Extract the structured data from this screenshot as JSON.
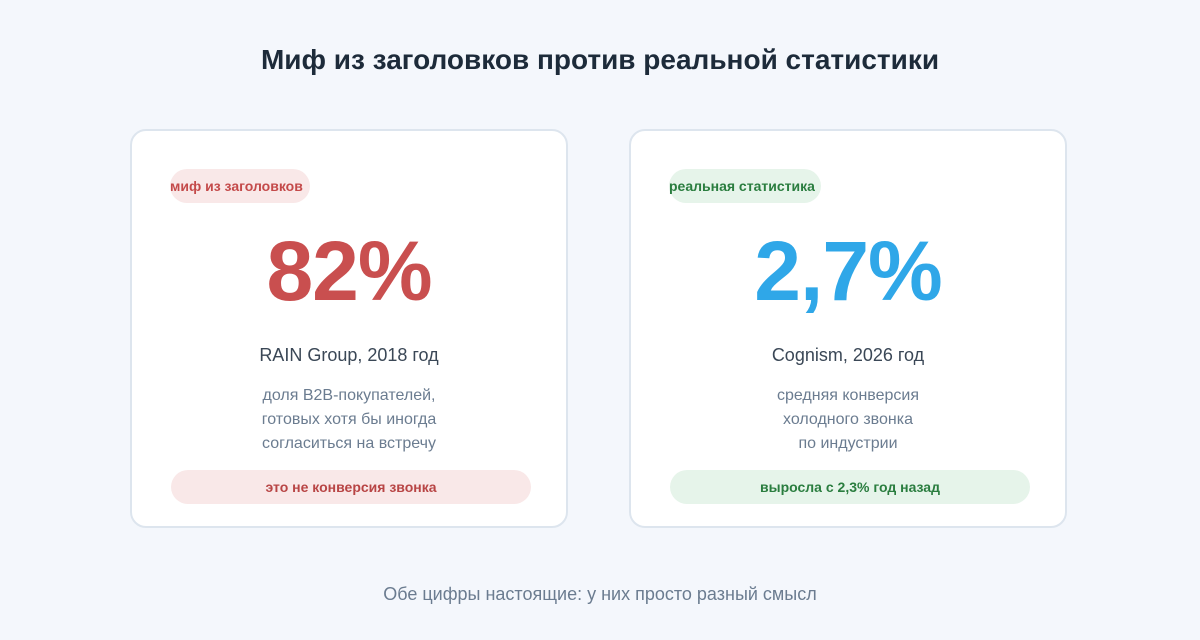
{
  "title": "Миф из заголовков против реальной статистики",
  "cards": [
    {
      "tag": "миф из заголовков",
      "value": "82%",
      "source": "RAIN Group, 2018 год",
      "description": [
        "доля B2B-покупателей,",
        "готовых хотя бы иногда",
        "согласиться на встречу"
      ],
      "note": "это не конверсия звонка",
      "color": "#c94f4f"
    },
    {
      "tag": "реальная статистика",
      "value": "2,7%",
      "source": "Cognism, 2026 год",
      "description": [
        "средняя конверсия",
        "холодного звонка",
        "по индустрии"
      ],
      "note": "выросла с 2,3% год назад",
      "color": "#2fa7e8"
    }
  ],
  "footer": "Обе цифры настоящие: у них просто разный смысл"
}
